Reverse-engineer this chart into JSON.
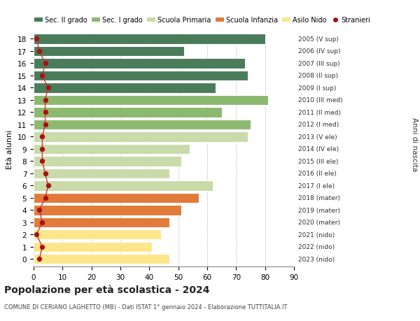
{
  "ages": [
    0,
    1,
    2,
    3,
    4,
    5,
    6,
    7,
    8,
    9,
    10,
    11,
    12,
    13,
    14,
    15,
    16,
    17,
    18
  ],
  "bar_values": [
    47,
    41,
    44,
    47,
    51,
    57,
    62,
    47,
    51,
    54,
    74,
    75,
    65,
    81,
    63,
    74,
    73,
    52,
    80
  ],
  "right_labels": [
    "2023 (nido)",
    "2022 (nido)",
    "2021 (nido)",
    "2020 (mater)",
    "2019 (mater)",
    "2018 (mater)",
    "2017 (I ele)",
    "2016 (II ele)",
    "2015 (III ele)",
    "2014 (IV ele)",
    "2013 (V ele)",
    "2012 (I med)",
    "2011 (II med)",
    "2010 (III med)",
    "2009 (I sup)",
    "2008 (II sup)",
    "2007 (III sup)",
    "2006 (IV sup)",
    "2005 (V sup)"
  ],
  "bar_colors": [
    "#fde68a",
    "#fde68a",
    "#fde68a",
    "#e07b39",
    "#e07b39",
    "#e07b39",
    "#c8dba8",
    "#c8dba8",
    "#c8dba8",
    "#c8dba8",
    "#c8dba8",
    "#8db870",
    "#8db870",
    "#8db870",
    "#4a7c59",
    "#4a7c59",
    "#4a7c59",
    "#4a7c59",
    "#4a7c59"
  ],
  "stranieri_values": [
    2,
    3,
    1,
    3,
    2,
    4,
    5,
    4,
    3,
    3,
    3,
    4,
    4,
    4,
    5,
    3,
    4,
    2,
    1
  ],
  "legend_labels": [
    "Sec. II grado",
    "Sec. I grado",
    "Scuola Primaria",
    "Scuola Infanzia",
    "Asilo Nido",
    "Stranieri"
  ],
  "legend_colors": [
    "#4a7c59",
    "#8db870",
    "#c8dba8",
    "#e07b39",
    "#fde68a",
    "#aa1111"
  ],
  "title": "Popolazione per età scolastica - 2024",
  "subtitle": "COMUNE DI CERIANO LAGHETTO (MB) - Dati ISTAT 1° gennaio 2024 - Elaborazione TUTTITALIA.IT",
  "ylabel": "Età alunni",
  "right_ylabel": "Anni di nascita",
  "xlim": [
    0,
    90
  ],
  "xticks": [
    0,
    10,
    20,
    30,
    40,
    50,
    60,
    70,
    80,
    90
  ],
  "bar_height": 0.82,
  "bg_color": "#ffffff",
  "grid_color": "#bbbbbb",
  "stranieri_color": "#aa1111",
  "stranieri_line_color": "#cc3333"
}
